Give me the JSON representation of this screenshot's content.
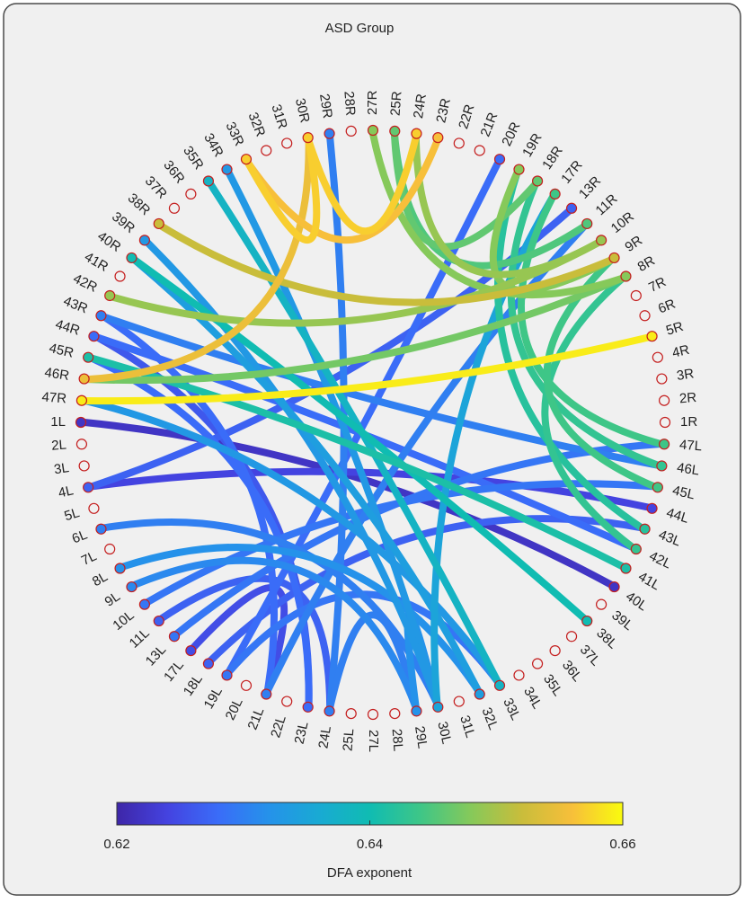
{
  "chart_data": {
    "type": "connectogram",
    "title": "ASD Group",
    "nodes": [
      "27R",
      "25R",
      "24R",
      "23R",
      "22R",
      "21R",
      "20R",
      "19R",
      "18R",
      "17R",
      "13R",
      "11R",
      "10R",
      "9R",
      "8R",
      "7R",
      "6R",
      "5R",
      "4R",
      "3R",
      "2R",
      "1R",
      "47L",
      "46L",
      "45L",
      "44L",
      "43L",
      "42L",
      "41L",
      "40L",
      "39L",
      "38L",
      "37L",
      "36L",
      "35L",
      "34L",
      "33L",
      "32L",
      "31L",
      "30L",
      "29L",
      "28L",
      "27L",
      "25L",
      "24L",
      "23L",
      "22L",
      "21L",
      "20L",
      "19L",
      "18L",
      "17L",
      "13L",
      "11L",
      "10L",
      "9L",
      "8L",
      "7L",
      "6L",
      "5L",
      "4L",
      "3L",
      "2L",
      "1L",
      "47R",
      "46R",
      "45R",
      "44R",
      "43R",
      "42R",
      "41R",
      "40R",
      "39R",
      "38R",
      "37R",
      "36R",
      "35R",
      "34R",
      "33R",
      "32R",
      "31R",
      "30R",
      "29R",
      "28R"
    ],
    "links": [
      {
        "source": "1L",
        "target": "40L",
        "value": 0.622
      },
      {
        "source": "4L",
        "target": "44L",
        "value": 0.624
      },
      {
        "source": "17L",
        "target": "21L",
        "value": 0.625
      },
      {
        "source": "23L",
        "target": "44R",
        "value": 0.626
      },
      {
        "source": "13R",
        "target": "4L",
        "value": 0.627
      },
      {
        "source": "11L",
        "target": "24L",
        "value": 0.627
      },
      {
        "source": "18L",
        "target": "43L",
        "value": 0.627
      },
      {
        "source": "20R",
        "target": "19L",
        "value": 0.628
      },
      {
        "source": "21L",
        "target": "43R",
        "value": 0.628
      },
      {
        "source": "44R",
        "target": "42L",
        "value": 0.628
      },
      {
        "source": "45R",
        "target": "23L",
        "value": 0.628
      },
      {
        "source": "10L",
        "target": "45L",
        "value": 0.629
      },
      {
        "source": "13L",
        "target": "47L",
        "value": 0.629
      },
      {
        "source": "19L",
        "target": "33L",
        "value": 0.629
      },
      {
        "source": "11R",
        "target": "21L",
        "value": 0.63
      },
      {
        "source": "6L",
        "target": "30L",
        "value": 0.63
      },
      {
        "source": "29R",
        "target": "24L",
        "value": 0.63
      },
      {
        "source": "24L",
        "target": "29L",
        "value": 0.63
      },
      {
        "source": "43R",
        "target": "46L",
        "value": 0.63
      },
      {
        "source": "9L",
        "target": "29L",
        "value": 0.631
      },
      {
        "source": "8L",
        "target": "32L",
        "value": 0.632
      },
      {
        "source": "29L",
        "target": "30L",
        "value": 0.632
      },
      {
        "source": "34R",
        "target": "30L",
        "value": 0.633
      },
      {
        "source": "47R",
        "target": "33L",
        "value": 0.633
      },
      {
        "source": "39R",
        "target": "30L",
        "value": 0.633
      },
      {
        "source": "40R",
        "target": "32L",
        "value": 0.634
      },
      {
        "source": "17R",
        "target": "30L",
        "value": 0.635
      },
      {
        "source": "35R",
        "target": "33L",
        "value": 0.638
      },
      {
        "source": "38L",
        "target": "40R",
        "value": 0.64
      },
      {
        "source": "41L",
        "target": "45R",
        "value": 0.641
      },
      {
        "source": "43L",
        "target": "19R",
        "value": 0.642
      },
      {
        "source": "46L",
        "target": "18R",
        "value": 0.643
      },
      {
        "source": "42L",
        "target": "8R",
        "value": 0.643
      },
      {
        "source": "47L",
        "target": "17R",
        "value": 0.644
      },
      {
        "source": "45L",
        "target": "9R",
        "value": 0.644
      },
      {
        "source": "25R",
        "target": "11R",
        "value": 0.645
      },
      {
        "source": "25R",
        "target": "18R",
        "value": 0.646
      },
      {
        "source": "46R",
        "target": "8R",
        "value": 0.647
      },
      {
        "source": "27R",
        "target": "8R",
        "value": 0.648
      },
      {
        "source": "19R",
        "target": "9R",
        "value": 0.648
      },
      {
        "source": "24R",
        "target": "10R",
        "value": 0.649
      },
      {
        "source": "42R",
        "target": "10R",
        "value": 0.649
      },
      {
        "source": "38R",
        "target": "9R",
        "value": 0.652
      },
      {
        "source": "30R",
        "target": "46R",
        "value": 0.655
      },
      {
        "source": "33R",
        "target": "23R",
        "value": 0.656
      },
      {
        "source": "30R",
        "target": "33R",
        "value": 0.657
      },
      {
        "source": "30R",
        "target": "24R",
        "value": 0.657
      },
      {
        "source": "47R",
        "target": "5R",
        "value": 0.659
      }
    ],
    "colormap": [
      "#3e26a8",
      "#4443e0",
      "#3a6cf8",
      "#2592ea",
      "#19aad3",
      "#10bcb2",
      "#3ec687",
      "#86c95a",
      "#c9bd3b",
      "#f7bf3a",
      "#f9fb0e"
    ],
    "colorbar": {
      "label": "DFA exponent",
      "clim": [
        0.62,
        0.66
      ],
      "ticks": [
        0.62,
        0.64,
        0.66
      ]
    }
  }
}
